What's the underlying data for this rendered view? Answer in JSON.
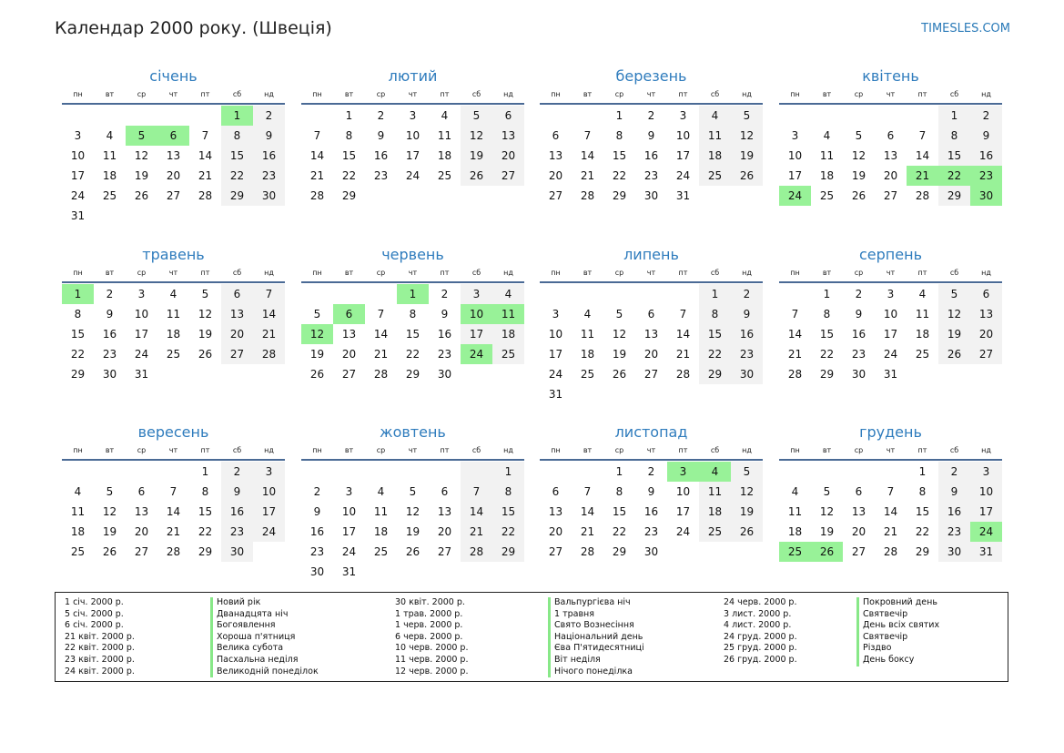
{
  "title": "Календар 2000 року. (Швеція)",
  "site": "TIMESLES.COM",
  "weekdays": [
    "пн",
    "вт",
    "ср",
    "чт",
    "пт",
    "сб",
    "нд"
  ],
  "months": [
    {
      "name": "січень",
      "offset": 5,
      "days": 31,
      "holidays": [
        1,
        5,
        6
      ]
    },
    {
      "name": "лютий",
      "offset": 1,
      "days": 29,
      "holidays": []
    },
    {
      "name": "березень",
      "offset": 2,
      "days": 31,
      "holidays": []
    },
    {
      "name": "квітень",
      "offset": 5,
      "days": 30,
      "holidays": [
        21,
        22,
        23,
        24,
        30
      ]
    },
    {
      "name": "травень",
      "offset": 0,
      "days": 31,
      "holidays": [
        1
      ]
    },
    {
      "name": "червень",
      "offset": 3,
      "days": 30,
      "holidays": [
        1,
        6,
        10,
        11,
        12,
        24
      ]
    },
    {
      "name": "липень",
      "offset": 5,
      "days": 31,
      "holidays": []
    },
    {
      "name": "серпень",
      "offset": 1,
      "days": 31,
      "holidays": []
    },
    {
      "name": "вересень",
      "offset": 4,
      "days": 30,
      "holidays": []
    },
    {
      "name": "жовтень",
      "offset": 6,
      "days": 31,
      "holidays": []
    },
    {
      "name": "листопад",
      "offset": 2,
      "days": 30,
      "holidays": [
        3,
        4
      ]
    },
    {
      "name": "грудень",
      "offset": 4,
      "days": 31,
      "holidays": [
        24,
        25,
        26
      ]
    }
  ],
  "legend": [
    {
      "dates": [
        "1 січ. 2000 р.",
        "5 січ. 2000 р.",
        "6 січ. 2000 р.",
        "21 квіт. 2000 р.",
        "22 квіт. 2000 р.",
        "23 квіт. 2000 р.",
        "24 квіт. 2000 р."
      ],
      "names": [
        "Новий рік",
        "Дванадцята ніч",
        "Богоявлення",
        "Хороша п'ятниця",
        "Велика субота",
        "Пасхальна неділя",
        "Великодній понеділок"
      ]
    },
    {
      "dates": [
        "30 квіт. 2000 р.",
        "1 трав. 2000 р.",
        "1 черв. 2000 р.",
        "6 черв. 2000 р.",
        "10 черв. 2000 р.",
        "11 черв. 2000 р.",
        "12 черв. 2000 р."
      ],
      "names": [
        "Вальпургієва ніч",
        "1 травня",
        "Свято Вознесіння",
        "Національний день",
        "Єва П'ятидесятниці",
        "Віт неділя",
        "Нічого понеділка"
      ]
    },
    {
      "dates": [
        "24 черв. 2000 р.",
        "3 лист. 2000 р.",
        "4 лист. 2000 р.",
        "24 груд. 2000 р.",
        "25 груд. 2000 р.",
        "26 груд. 2000 р."
      ],
      "names": [
        "Покровний день",
        "Святвечір",
        "День всіх святих",
        "Святвечір",
        "Різдво",
        "День боксу"
      ]
    }
  ],
  "colors": {
    "accent": "#2f7cbd",
    "holiday": "#98f298",
    "weekend": "#f2f2f2",
    "rule": "#4a6a95"
  }
}
